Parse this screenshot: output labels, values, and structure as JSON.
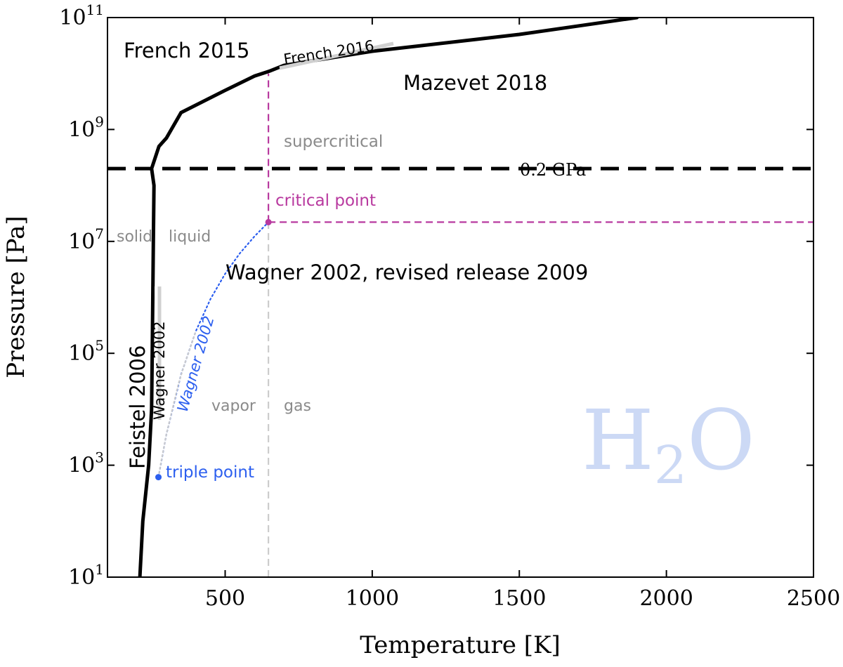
{
  "chart_data": {
    "type": "line",
    "title": "",
    "xlabel": "Temperature [K]",
    "ylabel": "Pressure [Pa]",
    "xlim": [
      100,
      2500
    ],
    "ylim_log10": [
      1,
      11
    ],
    "y_scale": "log",
    "grid": false,
    "xticks": [
      500,
      1000,
      1500,
      2000,
      2500
    ],
    "xtick_labels": [
      "500",
      "1000",
      "1500",
      "2000",
      "2500"
    ],
    "yticks": [
      {
        "exp": 1,
        "label_base": "10",
        "label_exp": "1"
      },
      {
        "exp": 3,
        "label_base": "10",
        "label_exp": "3"
      },
      {
        "exp": 5,
        "label_base": "10",
        "label_exp": "5"
      },
      {
        "exp": 7,
        "label_base": "10",
        "label_exp": "7"
      },
      {
        "exp": 9,
        "label_base": "10",
        "label_exp": "9"
      },
      {
        "exp": 11,
        "label_base": "10",
        "label_exp": "11"
      }
    ],
    "series": [
      {
        "name": "",
        "color": "#000000",
        "style": "solid-thick",
        "points": [
          [
            210,
            10.0
          ],
          [
            220,
            100.0
          ],
          [
            240,
            1000.0
          ],
          [
            250,
            10000.0
          ],
          [
            252,
            100000.0
          ],
          [
            254,
            1000000.0
          ],
          [
            256,
            10000000.0
          ],
          [
            258,
            100000000.0
          ],
          [
            250,
            200000000.0
          ],
          [
            275,
            500000000.0
          ],
          [
            300,
            700000000.0
          ],
          [
            350,
            2000000000.0
          ],
          [
            500,
            5000000000.0
          ],
          [
            600,
            9000000000.0
          ],
          [
            650,
            11000000000.0
          ],
          [
            700,
            14000000000.0
          ],
          [
            1000,
            25000000000.0
          ],
          [
            1500,
            50000000000.0
          ],
          [
            1900,
            100000000000.0
          ]
        ]
      },
      {
        "name": "",
        "color": "#2c5fef",
        "style": "dotted",
        "points": [
          [
            273.16,
            611.657
          ],
          [
            300,
            3536
          ],
          [
            350,
            41682
          ],
          [
            400,
            245770
          ],
          [
            450,
            932000
          ],
          [
            500,
            2639000
          ],
          [
            550,
            6117000
          ],
          [
            600,
            12345000
          ],
          [
            647.096,
            22064000
          ]
        ]
      },
      {
        "name": "",
        "color": "#cccccc",
        "style": "dotted",
        "points": [
          [
            273.16,
            611.657
          ],
          [
            280,
            991
          ],
          [
            300,
            3536
          ],
          [
            340,
            27000
          ],
          [
            360,
            60000
          ],
          [
            380,
            120000
          ],
          [
            400,
            245770
          ]
        ]
      }
    ],
    "reference_lines": [
      {
        "orientation": "horizontal",
        "value": 200000000.0,
        "label": "0.2 GPa",
        "color": "#000000",
        "style": "dashed-thick"
      },
      {
        "orientation": "horizontal",
        "value": 22064000,
        "from_x": 647.096,
        "to_x": 2500,
        "color": "#b8399f",
        "style": "dashed"
      },
      {
        "orientation": "vertical",
        "value": 647.096,
        "from_y": 22064000,
        "to_y": 10000000000.0,
        "color": "#b8399f",
        "style": "dashed"
      },
      {
        "orientation": "vertical",
        "value": 647.096,
        "from_y": 10,
        "to_y": 22064000,
        "color": "#cccccc",
        "style": "dashed"
      }
    ],
    "points_marked": [
      {
        "name": "critical point",
        "x": 647.096,
        "y": 22064000,
        "color": "#b8399f",
        "label": "critical point"
      },
      {
        "name": "triple point",
        "x": 273.16,
        "y": 611.657,
        "color": "#2c5fef",
        "label": "triple point"
      }
    ],
    "annotations": {
      "french2015": "French 2015",
      "french2016": "French 2016",
      "mazevet2018": "Mazevet 2018",
      "supercritical": "supercritical",
      "solid": "solid",
      "liquid": "liquid",
      "wagner_revised": "Wagner 2002, revised release 2009",
      "feistel2006": "Feistel 2006",
      "wagner_black": "Wagner 2002",
      "wagner_blue": "Wagner 2002",
      "vapor": "vapor",
      "gas": "gas",
      "h2o_base": "H",
      "h2o_sub": "2",
      "h2o_end": "O"
    },
    "colors": {
      "axis": "#000000",
      "melt": "#000000",
      "critical": "#b8399f",
      "triple": "#2c5fef",
      "gray_text": "#8a8a8a",
      "h2o": "#ccd9f5"
    }
  }
}
